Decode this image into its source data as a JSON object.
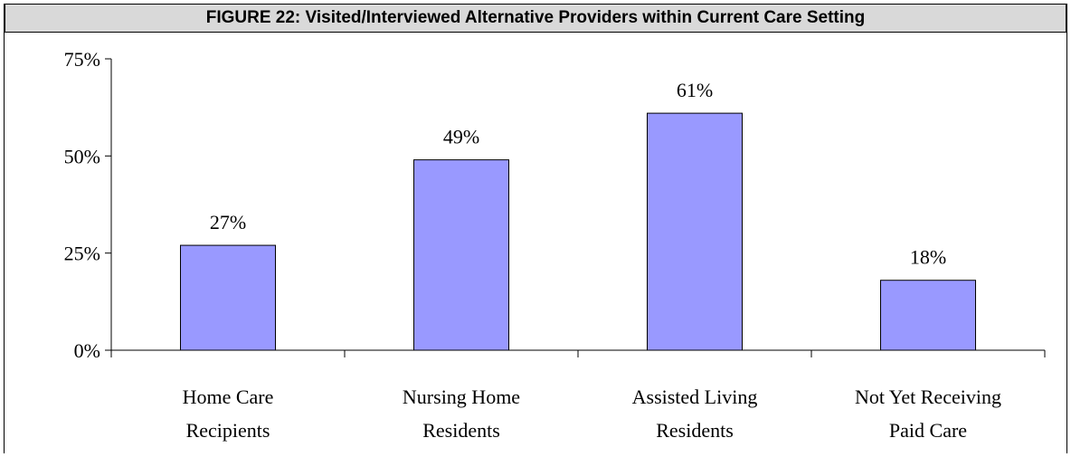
{
  "chart_data": {
    "type": "bar",
    "title": "FIGURE 22: Visited/Interviewed Alternative Providers within Current Care Setting",
    "categories": [
      [
        "Home Care",
        "Recipients"
      ],
      [
        "Nursing Home",
        "Residents"
      ],
      [
        "Assisted Living",
        "Residents"
      ],
      [
        "Not Yet Receiving",
        "Paid Care"
      ]
    ],
    "values": [
      27,
      49,
      61,
      18
    ],
    "data_labels": [
      "27%",
      "49%",
      "61%",
      "18%"
    ],
    "yticks": [
      "0%",
      "25%",
      "50%",
      "75%"
    ],
    "ytick_values": [
      0,
      25,
      50,
      75
    ],
    "ylim": [
      0,
      75
    ],
    "grid": false,
    "bar_color": "#9999ff"
  }
}
